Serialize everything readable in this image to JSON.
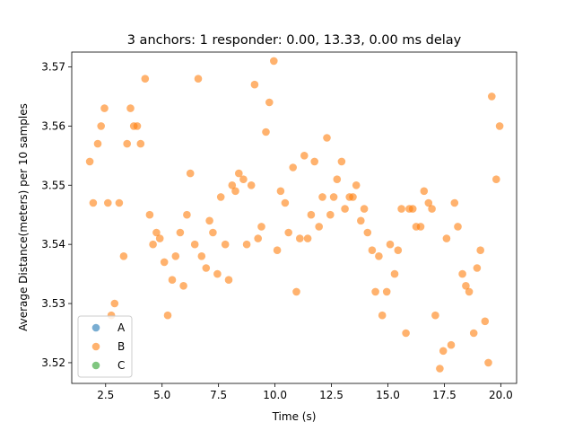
{
  "chart_data": {
    "type": "scatter",
    "title": "3 anchors: 1 responder: 0.00, 13.33, 0.00 ms delay",
    "xlabel": "Time (s)",
    "ylabel": "Average Distance(meters) per 10 samples",
    "xlim": [
      1.0,
      20.7
    ],
    "ylim": [
      3.5165,
      3.5725
    ],
    "x_ticks": [
      2.5,
      5.0,
      7.5,
      10.0,
      12.5,
      15.0,
      17.5,
      20.0
    ],
    "x_tick_labels": [
      "2.5",
      "5.0",
      "7.5",
      "10.0",
      "12.5",
      "15.0",
      "17.5",
      "20.0"
    ],
    "y_ticks": [
      3.52,
      3.53,
      3.54,
      3.55,
      3.56,
      3.57
    ],
    "y_tick_labels": [
      "3.52",
      "3.53",
      "3.54",
      "3.55",
      "3.56",
      "3.57"
    ],
    "grid": false,
    "legend_position": "lower-left",
    "colors": {
      "A": "#1f77b4",
      "B": "#ff7f0e",
      "C": "#2ca02c"
    },
    "series": [
      {
        "name": "A",
        "x": [],
        "y": []
      },
      {
        "name": "B",
        "x": [
          1.8,
          1.95,
          2.15,
          2.3,
          2.45,
          2.6,
          2.75,
          2.9,
          3.1,
          3.3,
          3.45,
          3.6,
          3.75,
          3.9,
          4.05,
          4.25,
          4.45,
          4.6,
          4.75,
          4.9,
          5.1,
          5.25,
          5.45,
          5.6,
          5.8,
          5.95,
          6.1,
          6.25,
          6.45,
          6.6,
          6.75,
          6.95,
          7.1,
          7.25,
          7.45,
          7.6,
          7.8,
          7.95,
          8.1,
          8.25,
          8.4,
          8.6,
          8.75,
          8.95,
          9.1,
          9.25,
          9.4,
          9.6,
          9.75,
          9.95,
          10.1,
          10.25,
          10.45,
          10.6,
          10.8,
          10.95,
          11.1,
          11.3,
          11.45,
          11.6,
          11.75,
          11.95,
          12.1,
          12.3,
          12.45,
          12.6,
          12.75,
          12.95,
          13.1,
          13.3,
          13.45,
          13.6,
          13.8,
          13.95,
          14.1,
          14.3,
          14.45,
          14.6,
          14.75,
          14.95,
          15.1,
          15.3,
          15.45,
          15.6,
          15.8,
          15.95,
          16.1,
          16.25,
          16.45,
          16.6,
          16.8,
          16.95,
          17.1,
          17.3,
          17.45,
          17.6,
          17.8,
          17.95,
          18.1,
          18.3,
          18.45,
          18.6,
          18.8,
          18.95,
          19.1,
          19.3,
          19.45,
          19.6,
          19.8,
          19.95
        ],
        "y": [
          3.554,
          3.547,
          3.557,
          3.56,
          3.563,
          3.547,
          3.528,
          3.53,
          3.547,
          3.538,
          3.557,
          3.563,
          3.56,
          3.56,
          3.557,
          3.568,
          3.545,
          3.54,
          3.542,
          3.541,
          3.537,
          3.528,
          3.534,
          3.538,
          3.542,
          3.533,
          3.545,
          3.552,
          3.54,
          3.568,
          3.538,
          3.536,
          3.544,
          3.542,
          3.535,
          3.548,
          3.54,
          3.534,
          3.55,
          3.549,
          3.552,
          3.551,
          3.54,
          3.55,
          3.567,
          3.541,
          3.543,
          3.559,
          3.564,
          3.571,
          3.539,
          3.549,
          3.547,
          3.542,
          3.553,
          3.532,
          3.541,
          3.555,
          3.541,
          3.545,
          3.554,
          3.543,
          3.548,
          3.558,
          3.545,
          3.548,
          3.551,
          3.554,
          3.546,
          3.548,
          3.548,
          3.55,
          3.544,
          3.546,
          3.542,
          3.539,
          3.532,
          3.538,
          3.528,
          3.532,
          3.54,
          3.535,
          3.539,
          3.546,
          3.525,
          3.546,
          3.546,
          3.543,
          3.543,
          3.549,
          3.547,
          3.546,
          3.528,
          3.519,
          3.522,
          3.541,
          3.523,
          3.547,
          3.543,
          3.535,
          3.533,
          3.532,
          3.525,
          3.536,
          3.539,
          3.527,
          3.52,
          3.565,
          3.551,
          3.56
        ]
      },
      {
        "name": "C",
        "x": [],
        "y": []
      }
    ]
  }
}
